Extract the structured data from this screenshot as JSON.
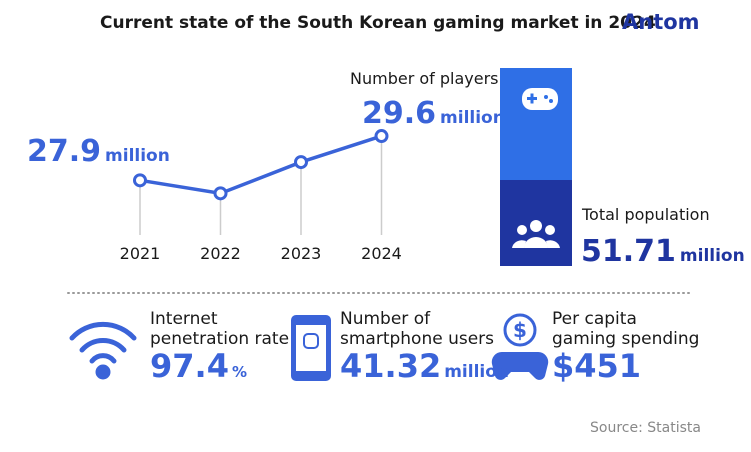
{
  "title": "Current state of the South Korean gaming market in 2024",
  "brand": "Antom",
  "chart_data": {
    "type": "line",
    "categories": [
      "2021",
      "2022",
      "2023",
      "2024"
    ],
    "values": [
      27.9,
      27.4,
      28.6,
      29.6
    ],
    "unit": "million",
    "color": "#3a63d8",
    "ylim": [
      25.8,
      30.6
    ],
    "label_title": "Number of players"
  },
  "population": {
    "label": "Total population",
    "value": "51.71",
    "unit": "million"
  },
  "stats": [
    {
      "lines": [
        "Internet",
        "penetration rate"
      ],
      "value": "97.4",
      "unit": "%"
    },
    {
      "lines": [
        "Number of",
        "smartphone users"
      ],
      "value": "41.32",
      "unit": "million"
    },
    {
      "lines": [
        "Per capita",
        "gaming spending"
      ],
      "value": "$451"
    }
  ],
  "source": "Source: Statista"
}
